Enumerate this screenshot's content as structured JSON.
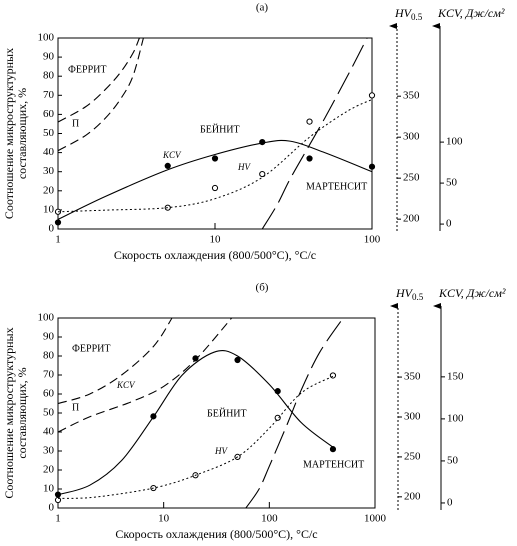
{
  "chart_data": [
    {
      "type": "line",
      "title": "(а)",
      "xlabel": "Скорость охлаждения (800/500°C), °C/с",
      "ylabel": [
        "Соотношение микроструктурных",
        "составляющих, %"
      ],
      "xscale": "log",
      "xlim": [
        1,
        100
      ],
      "xticks": [
        1,
        10,
        100
      ],
      "ylim": [
        0,
        100
      ],
      "yticks": [
        0,
        10,
        20,
        30,
        40,
        50,
        60,
        70,
        80,
        90,
        100
      ],
      "hv_axis": {
        "label": "HV",
        "subscript": "0.5",
        "lim": [
          188,
          421
        ],
        "ticks": [
          200,
          250,
          300,
          350
        ]
      },
      "kcv_axis": {
        "label": "KCV, Дж/см²",
        "lim": [
          -6,
          227
        ],
        "ticks": [
          0,
          50,
          100
        ]
      },
      "series": [
        {
          "name": "ФЕРРИТ",
          "style": "dashed",
          "color": "#000000",
          "x": [
            1,
            1.5,
            2,
            2.5,
            3,
            3.3
          ],
          "values": [
            56,
            64,
            73,
            82,
            92,
            100
          ]
        },
        {
          "name": "П",
          "style": "dashed",
          "color": "#000000",
          "x": [
            1,
            1.5,
            2,
            2.5,
            3,
            3.5
          ],
          "values": [
            41,
            49,
            58,
            68,
            80,
            100
          ]
        },
        {
          "name": "БЕЙНИТ",
          "style": "solid",
          "color": "#000000",
          "x": [
            1,
            2,
            5,
            10,
            20,
            30,
            50,
            100
          ],
          "values": [
            5,
            17,
            31,
            39,
            45,
            46,
            40,
            30
          ]
        },
        {
          "name": "МАРТЕНСИТ",
          "style": "longdash",
          "color": "#000000",
          "x": [
            20,
            25,
            30,
            40,
            50,
            60,
            75,
            93
          ],
          "values": [
            0,
            13,
            26,
            44,
            58,
            70,
            85,
            100
          ]
        },
        {
          "name": "KCV",
          "style": "none",
          "marker": "filled",
          "axis": "kcv",
          "color": "#000000",
          "x": [
            1,
            5,
            10,
            20,
            40,
            100
          ],
          "values": [
            2,
            71,
            80,
            100,
            80,
            70
          ]
        },
        {
          "name": "HV",
          "style": "none",
          "marker": "open",
          "axis": "hv",
          "color": "#000000",
          "x": [
            1,
            5,
            10,
            20,
            40,
            100
          ],
          "values": [
            209,
            214,
            238,
            255,
            319,
            351
          ]
        },
        {
          "style": "dotted",
          "axis": "hv",
          "color": "#000000",
          "x": [
            1,
            2,
            5,
            10,
            20,
            40,
            70,
            100
          ],
          "values": [
            209,
            211,
            214,
            225,
            251,
            300,
            332,
            346
          ]
        }
      ]
    },
    {
      "type": "line",
      "title": "(б)",
      "xlabel": "Скорость охлаждения (800/500°C), °C/с",
      "ylabel": [
        "Соотношение микроструктурных",
        "составляющих, %"
      ],
      "xscale": "log",
      "xlim": [
        1,
        1000
      ],
      "xticks": [
        1,
        10,
        100,
        1000
      ],
      "ylim": [
        0,
        100
      ],
      "yticks": [
        0,
        10,
        20,
        30,
        40,
        50,
        60,
        70,
        80,
        90,
        100
      ],
      "hv_axis": {
        "label": "HV",
        "subscript": "0.5",
        "lim": [
          186,
          424
        ],
        "ticks": [
          200,
          250,
          300,
          350
        ]
      },
      "kcv_axis": {
        "label": "KCV, Дж/см²",
        "lim": [
          -6,
          220
        ],
        "ticks": [
          0,
          50,
          100,
          150
        ]
      },
      "series": [
        {
          "name": "ФЕРРИТ",
          "style": "dashed",
          "color": "#000000",
          "x": [
            1,
            2,
            4,
            8,
            12
          ],
          "values": [
            55,
            60,
            70,
            85,
            100
          ]
        },
        {
          "name": "П",
          "style": "dashed",
          "color": "#000000",
          "x": [
            1,
            2,
            5,
            10,
            20,
            44
          ],
          "values": [
            40,
            48,
            56,
            64,
            78,
            100
          ]
        },
        {
          "name": "KCV",
          "style": "none",
          "marker": "filled",
          "axis": "kcv",
          "color": "#000000",
          "x": [
            1,
            8,
            20,
            50,
            120,
            400
          ],
          "values": [
            10,
            103,
            172,
            170,
            133,
            64
          ]
        },
        {
          "name": "БЕЙНИТ",
          "style": "solid",
          "color": "#000000",
          "x": [
            1,
            2,
            4,
            8,
            15,
            30,
            50,
            100,
            200,
            400
          ],
          "values": [
            7,
            12,
            25,
            48,
            70,
            82,
            80,
            65,
            45,
            32
          ]
        },
        {
          "name": "HV",
          "style": "none",
          "marker": "open",
          "axis": "hv",
          "color": "#000000",
          "x": [
            1,
            8,
            20,
            50,
            120,
            400
          ],
          "values": [
            196,
            211,
            227,
            250,
            299,
            352
          ]
        },
        {
          "style": "dotted",
          "axis": "hv",
          "color": "#000000",
          "x": [
            1,
            2,
            5,
            10,
            20,
            50,
            100,
            200,
            400
          ],
          "values": [
            198,
            199,
            206,
            214,
            227,
            250,
            286,
            330,
            351
          ]
        },
        {
          "name": "МАРТЕНСИТ",
          "style": "longdash",
          "color": "#000000",
          "x": [
            60,
            80,
            100,
            150,
            200,
            300,
            500
          ],
          "values": [
            0,
            10,
            22,
            45,
            62,
            82,
            100
          ]
        }
      ]
    }
  ]
}
